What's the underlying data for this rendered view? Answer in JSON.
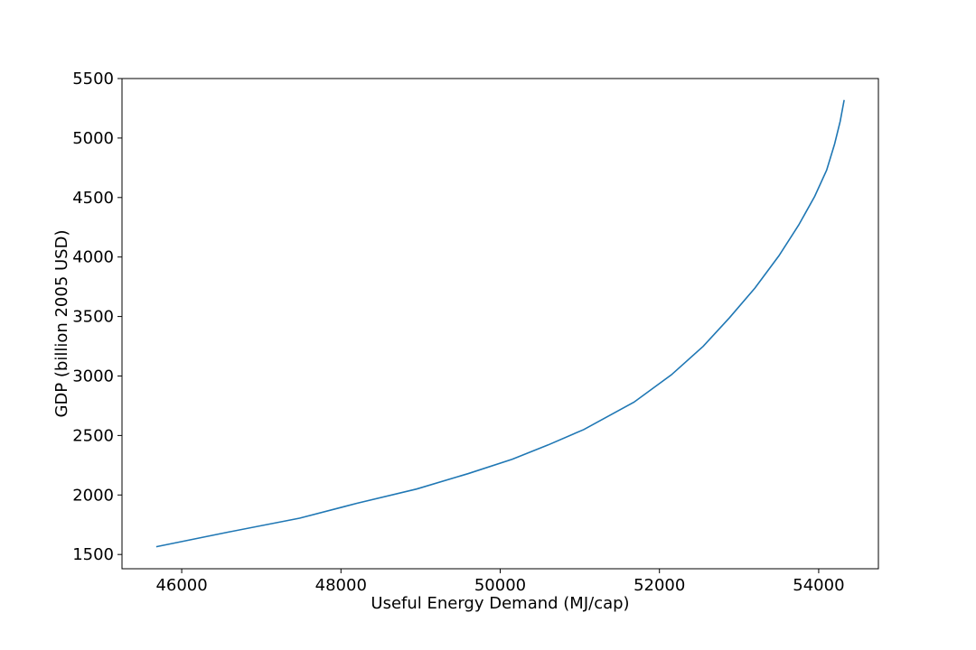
{
  "chart_data": {
    "type": "line",
    "xlabel": "Useful Energy Demand (MJ/cap)",
    "ylabel": "GDP (billion 2005 USD)",
    "xlim": [
      45250,
      54750
    ],
    "ylim": [
      1380,
      5500
    ],
    "x_ticks": [
      46000,
      48000,
      50000,
      52000,
      54000
    ],
    "y_ticks": [
      1500,
      2000,
      2500,
      3000,
      3500,
      4000,
      4500,
      5000,
      5500
    ],
    "grid": false,
    "colors": {
      "line": "#1f77b4",
      "axes": "#000000",
      "background": "#ffffff"
    },
    "series": [
      {
        "x": [
          45680,
          46600,
          47480,
          48200,
          48950,
          49600,
          50150,
          50600,
          51050,
          51680,
          52150,
          52550,
          52880,
          53200,
          53500,
          53750,
          53950,
          54100,
          54200,
          54270,
          54320
        ],
        "y": [
          1565,
          1690,
          1805,
          1930,
          2050,
          2180,
          2300,
          2420,
          2550,
          2780,
          3010,
          3250,
          3490,
          3740,
          4010,
          4270,
          4510,
          4730,
          4950,
          5140,
          5320
        ]
      }
    ]
  }
}
